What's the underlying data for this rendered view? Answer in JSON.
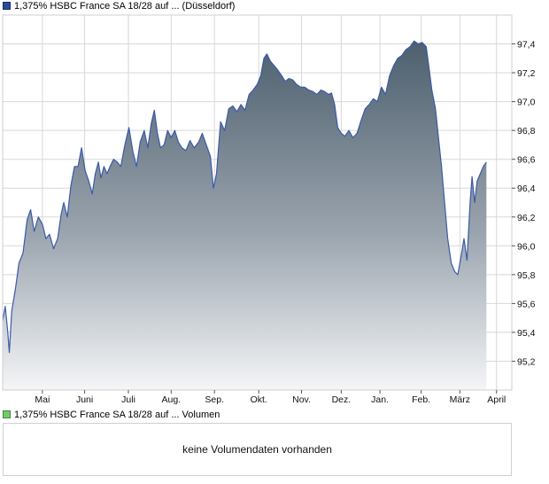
{
  "legend": {
    "price_label": "1,375% HSBC France SA 18/28 auf ... (Düsseldorf)",
    "volume_label": "1,375% HSBC France SA 18/28 auf ... Volumen"
  },
  "volume_panel": {
    "message": "keine Volumendaten vorhanden"
  },
  "colors": {
    "line": "#3a5aa8",
    "fill_top": "#4d5f6e",
    "fill_bottom": "#f4f5f7",
    "grid": "#d8d8d8",
    "border": "#cfcfcf"
  },
  "chart_data": {
    "type": "area",
    "title": "",
    "xlabel": "",
    "ylabel": "",
    "ylim": [
      95.0,
      97.6
    ],
    "y_ticks": [
      "97,4",
      "97,2",
      "97,0",
      "96,8",
      "96,6",
      "96,4",
      "96,2",
      "96,0",
      "95,8",
      "95,6",
      "95,4",
      "95,2"
    ],
    "y_tick_values": [
      97.4,
      97.2,
      97.0,
      96.8,
      96.6,
      96.4,
      96.2,
      96.0,
      95.8,
      95.6,
      95.4,
      95.2
    ],
    "x_ticks": [
      "Mai",
      "Juni",
      "Juli",
      "Aug.",
      "Sep.",
      "Okt.",
      "Nov.",
      "Dez.",
      "Jan.",
      "Feb.",
      "März",
      "April"
    ],
    "x_tick_positions": [
      0.078,
      0.161,
      0.247,
      0.331,
      0.416,
      0.503,
      0.587,
      0.665,
      0.741,
      0.822,
      0.898,
      0.97
    ],
    "grid": true,
    "series": [
      {
        "values": [
          [
            0.0,
            95.48
          ],
          [
            0.005,
            95.58
          ],
          [
            0.01,
            95.4
          ],
          [
            0.013,
            95.26
          ],
          [
            0.018,
            95.55
          ],
          [
            0.025,
            95.7
          ],
          [
            0.032,
            95.88
          ],
          [
            0.04,
            95.95
          ],
          [
            0.048,
            96.18
          ],
          [
            0.055,
            96.25
          ],
          [
            0.062,
            96.1
          ],
          [
            0.07,
            96.2
          ],
          [
            0.078,
            96.15
          ],
          [
            0.085,
            96.05
          ],
          [
            0.092,
            96.08
          ],
          [
            0.1,
            95.98
          ],
          [
            0.108,
            96.05
          ],
          [
            0.115,
            96.22
          ],
          [
            0.12,
            96.3
          ],
          [
            0.127,
            96.2
          ],
          [
            0.134,
            96.42
          ],
          [
            0.141,
            96.55
          ],
          [
            0.148,
            96.55
          ],
          [
            0.155,
            96.68
          ],
          [
            0.162,
            96.52
          ],
          [
            0.169,
            96.45
          ],
          [
            0.176,
            96.36
          ],
          [
            0.182,
            96.5
          ],
          [
            0.188,
            96.58
          ],
          [
            0.193,
            96.47
          ],
          [
            0.199,
            96.55
          ],
          [
            0.205,
            96.5
          ],
          [
            0.211,
            96.55
          ],
          [
            0.218,
            96.6
          ],
          [
            0.225,
            96.58
          ],
          [
            0.232,
            96.55
          ],
          [
            0.24,
            96.7
          ],
          [
            0.248,
            96.82
          ],
          [
            0.256,
            96.65
          ],
          [
            0.263,
            96.55
          ],
          [
            0.27,
            96.72
          ],
          [
            0.278,
            96.8
          ],
          [
            0.285,
            96.68
          ],
          [
            0.292,
            96.85
          ],
          [
            0.298,
            96.94
          ],
          [
            0.304,
            96.78
          ],
          [
            0.31,
            96.68
          ],
          [
            0.317,
            96.7
          ],
          [
            0.324,
            96.8
          ],
          [
            0.331,
            96.75
          ],
          [
            0.338,
            96.8
          ],
          [
            0.345,
            96.72
          ],
          [
            0.352,
            96.68
          ],
          [
            0.36,
            96.66
          ],
          [
            0.368,
            96.73
          ],
          [
            0.376,
            96.68
          ],
          [
            0.385,
            96.72
          ],
          [
            0.392,
            96.78
          ],
          [
            0.4,
            96.7
          ],
          [
            0.408,
            96.62
          ],
          [
            0.414,
            96.4
          ],
          [
            0.42,
            96.5
          ],
          [
            0.428,
            96.86
          ],
          [
            0.436,
            96.8
          ],
          [
            0.444,
            96.95
          ],
          [
            0.452,
            96.97
          ],
          [
            0.46,
            96.93
          ],
          [
            0.468,
            96.98
          ],
          [
            0.476,
            96.94
          ],
          [
            0.484,
            97.05
          ],
          [
            0.492,
            97.08
          ],
          [
            0.5,
            97.12
          ],
          [
            0.507,
            97.18
          ],
          [
            0.513,
            97.3
          ],
          [
            0.519,
            97.33
          ],
          [
            0.526,
            97.28
          ],
          [
            0.533,
            97.25
          ],
          [
            0.54,
            97.22
          ],
          [
            0.548,
            97.18
          ],
          [
            0.555,
            97.14
          ],
          [
            0.562,
            97.16
          ],
          [
            0.57,
            97.15
          ],
          [
            0.577,
            97.12
          ],
          [
            0.585,
            97.1
          ],
          [
            0.593,
            97.1
          ],
          [
            0.601,
            97.08
          ],
          [
            0.609,
            97.07
          ],
          [
            0.617,
            97.05
          ],
          [
            0.625,
            97.08
          ],
          [
            0.632,
            97.07
          ],
          [
            0.64,
            97.05
          ],
          [
            0.646,
            97.06
          ],
          [
            0.652,
            96.98
          ],
          [
            0.658,
            96.82
          ],
          [
            0.665,
            96.78
          ],
          [
            0.672,
            96.76
          ],
          [
            0.68,
            96.8
          ],
          [
            0.688,
            96.75
          ],
          [
            0.696,
            96.78
          ],
          [
            0.704,
            96.87
          ],
          [
            0.712,
            96.95
          ],
          [
            0.72,
            96.98
          ],
          [
            0.728,
            97.02
          ],
          [
            0.736,
            97.0
          ],
          [
            0.744,
            97.1
          ],
          [
            0.752,
            97.05
          ],
          [
            0.76,
            97.18
          ],
          [
            0.768,
            97.25
          ],
          [
            0.776,
            97.3
          ],
          [
            0.784,
            97.32
          ],
          [
            0.792,
            97.36
          ],
          [
            0.8,
            97.38
          ],
          [
            0.808,
            97.42
          ],
          [
            0.816,
            97.4
          ],
          [
            0.824,
            97.41
          ],
          [
            0.832,
            97.38
          ],
          [
            0.838,
            97.22
          ],
          [
            0.843,
            97.08
          ],
          [
            0.85,
            96.95
          ],
          [
            0.856,
            96.75
          ],
          [
            0.862,
            96.55
          ],
          [
            0.868,
            96.3
          ],
          [
            0.874,
            96.05
          ],
          [
            0.881,
            95.88
          ],
          [
            0.888,
            95.82
          ],
          [
            0.894,
            95.8
          ],
          [
            0.9,
            95.92
          ],
          [
            0.906,
            96.05
          ],
          [
            0.912,
            95.9
          ],
          [
            0.918,
            96.3
          ],
          [
            0.922,
            96.48
          ],
          [
            0.927,
            96.3
          ],
          [
            0.932,
            96.45
          ],
          [
            0.938,
            96.5
          ],
          [
            0.944,
            96.55
          ],
          [
            0.95,
            96.58
          ]
        ]
      }
    ]
  }
}
